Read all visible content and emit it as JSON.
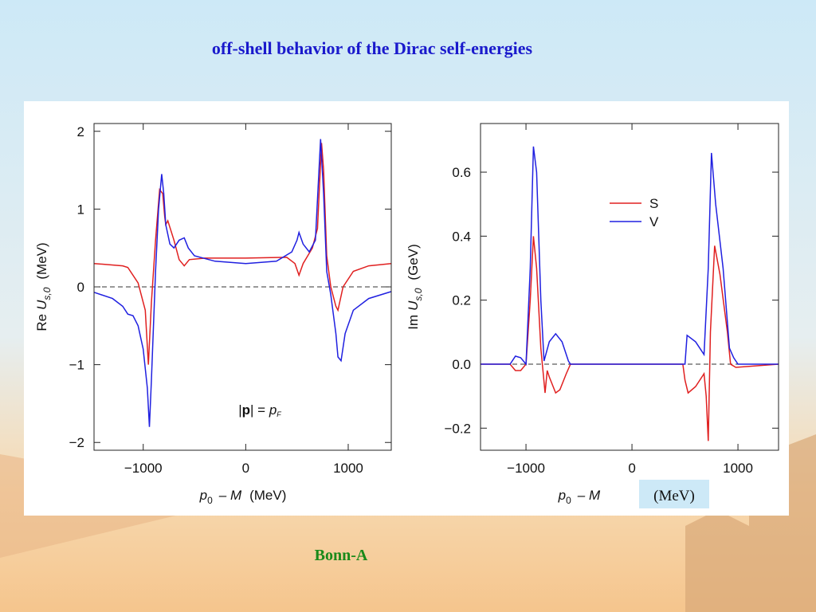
{
  "title": "off-shell behavior of the Dirac self-energies",
  "footer": "Bonn-A",
  "chart_data": [
    {
      "type": "line",
      "ylabel": {
        "prefix": "Re",
        "symbol": "U",
        "subscript": "s,0",
        "unit": "(MeV)"
      },
      "xlabel": {
        "symbol": "p",
        "subscript": "0",
        "rest": "– M",
        "unit": "(MeV)"
      },
      "annotation": {
        "left": "|",
        "bold": "p",
        "mid": "| = ",
        "symbol": "p",
        "subscript": "F"
      },
      "xlim": [
        -1480,
        1420
      ],
      "ylim": [
        -2.1,
        2.1
      ],
      "xticks": [
        {
          "value": -1000,
          "label": "−1000"
        },
        0,
        1000
      ],
      "yticks": [
        {
          "value": -2,
          "label": "−2"
        },
        {
          "value": -1,
          "label": "−1"
        },
        0,
        1,
        2
      ],
      "series": [
        {
          "color": "#e02020",
          "x": [
            -1480,
            -1200,
            -1150,
            -1050,
            -980,
            -950,
            -920,
            -880,
            -840,
            -810,
            -790,
            -780,
            -760,
            -700,
            -650,
            -600,
            -550,
            -400,
            0,
            400,
            480,
            520,
            560,
            650,
            700,
            740,
            760,
            790,
            830,
            880,
            900,
            950,
            1050,
            1200,
            1420
          ],
          "values": [
            0.3,
            0.27,
            0.25,
            0.05,
            -0.3,
            -1.0,
            -0.2,
            0.6,
            1.25,
            1.2,
            0.9,
            0.8,
            0.85,
            0.6,
            0.35,
            0.27,
            0.35,
            0.37,
            0.37,
            0.38,
            0.3,
            0.15,
            0.3,
            0.5,
            0.75,
            1.85,
            1.5,
            0.4,
            0,
            -0.25,
            -0.3,
            0,
            0.2,
            0.27,
            0.3
          ]
        },
        {
          "color": "#2020e0",
          "x": [
            -1480,
            -1300,
            -1200,
            -1150,
            -1100,
            -1050,
            -1000,
            -960,
            -940,
            -920,
            -880,
            -850,
            -820,
            -800,
            -780,
            -740,
            -700,
            -650,
            -600,
            -560,
            -500,
            -300,
            0,
            300,
            450,
            500,
            520,
            560,
            620,
            680,
            730,
            760,
            790,
            830,
            880,
            900,
            930,
            970,
            1050,
            1200,
            1420
          ],
          "values": [
            -0.07,
            -0.15,
            -0.25,
            -0.35,
            -0.37,
            -0.5,
            -0.8,
            -1.3,
            -1.8,
            -1.2,
            0.2,
            1.0,
            1.45,
            1.2,
            0.8,
            0.55,
            0.5,
            0.6,
            0.63,
            0.5,
            0.4,
            0.33,
            0.3,
            0.33,
            0.45,
            0.6,
            0.7,
            0.55,
            0.45,
            0.6,
            1.9,
            1.2,
            0.2,
            -0.1,
            -0.6,
            -0.9,
            -0.95,
            -0.6,
            -0.3,
            -0.15,
            -0.06
          ]
        }
      ]
    },
    {
      "type": "line",
      "ylabel": {
        "prefix": "Im",
        "symbol": "U",
        "subscript": "s,0",
        "unit": "(GeV)"
      },
      "xlabel": {
        "symbol": "p",
        "subscript": "0",
        "rest": "– M",
        "unit": "(MeV)"
      },
      "xlim": [
        -1429,
        1383
      ],
      "ylim": [
        -0.269,
        0.752
      ],
      "xticks": [
        {
          "value": -1000,
          "label": "−1000"
        },
        0,
        1000
      ],
      "yticks": [
        {
          "value": -0.2,
          "label": "−0.2"
        },
        {
          "value": 0,
          "label": "0.0"
        },
        0.2,
        0.4,
        0.6
      ],
      "legend": "upper right",
      "series": [
        {
          "name": "S",
          "color": "#e02020",
          "x": [
            -1429,
            -1150,
            -1100,
            -1050,
            -1000,
            -960,
            -930,
            -900,
            -860,
            -820,
            -800,
            -780,
            -720,
            -680,
            -620,
            -580,
            -300,
            0,
            480,
            500,
            530,
            600,
            680,
            700,
            720,
            740,
            780,
            830,
            900,
            930,
            980,
            1383
          ],
          "values": [
            0,
            0,
            -0.02,
            -0.02,
            0,
            0.2,
            0.4,
            0.3,
            0.05,
            -0.09,
            -0.02,
            -0.04,
            -0.09,
            -0.08,
            -0.03,
            0,
            0,
            0,
            0,
            -0.05,
            -0.09,
            -0.07,
            -0.03,
            -0.1,
            -0.24,
            0.1,
            0.37,
            0.28,
            0.1,
            0,
            -0.01,
            0
          ]
        },
        {
          "name": "V",
          "color": "#2020e0",
          "x": [
            -1429,
            -1150,
            -1100,
            -1050,
            -1000,
            -960,
            -930,
            -900,
            -860,
            -830,
            -780,
            -720,
            -660,
            -600,
            -580,
            500,
            520,
            600,
            680,
            720,
            750,
            790,
            860,
            920,
            960,
            1000,
            1383
          ],
          "values": [
            0,
            0,
            0.025,
            0.02,
            0,
            0.3,
            0.68,
            0.6,
            0.2,
            0.01,
            0.07,
            0.095,
            0.07,
            0.01,
            0,
            0,
            0.09,
            0.07,
            0.03,
            0.3,
            0.66,
            0.5,
            0.3,
            0.05,
            0.02,
            0,
            0
          ]
        }
      ]
    }
  ]
}
